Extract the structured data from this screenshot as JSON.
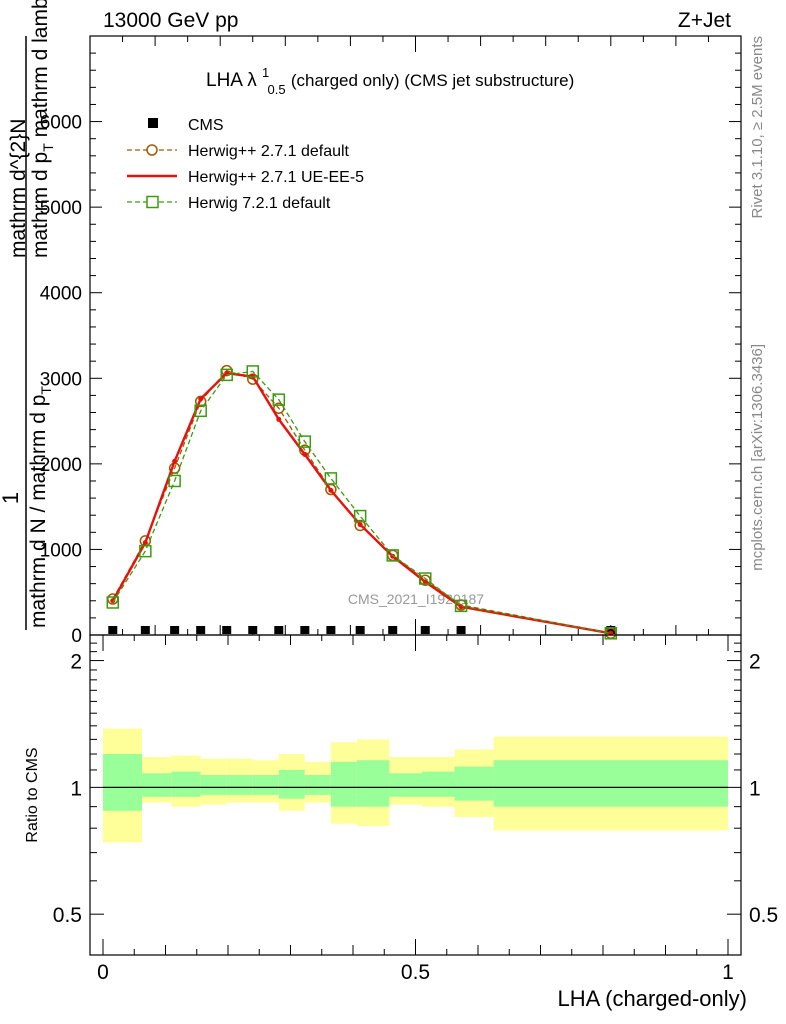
{
  "header": {
    "left": "13000 GeV pp",
    "right": "Z+Jet"
  },
  "side_labels": {
    "rivet": "Rivet 3.1.10, ≥ 2.5M events",
    "mcplots": "mcplots.cern.ch [arXiv:1306.3436]"
  },
  "watermark": "CMS_2021_I1920187",
  "chart_data": [
    {
      "type": "line",
      "title_main": "LHA λ",
      "title_sup": "1",
      "title_sub": "0.5",
      "title_rest": " (charged only) (CMS jet substructure)",
      "ylabel_parts": [
        "1",
        "mathrm d N / mathrm d p",
        "T",
        "mathrm d^{2}N",
        "mathrm d p",
        "T",
        " mathrm d lambda"
      ],
      "xlim": [
        0,
        1
      ],
      "ylim": [
        0,
        7000
      ],
      "yticks": [
        0,
        1000,
        2000,
        3000,
        4000,
        5000,
        6000
      ],
      "ytick_labels": [
        "0",
        "1000",
        "2000",
        "3000",
        "4000",
        "5000",
        "6000"
      ],
      "x": [
        0.035,
        0.085,
        0.13,
        0.17,
        0.21,
        0.25,
        0.29,
        0.33,
        0.37,
        0.415,
        0.465,
        0.515,
        0.57,
        0.8
      ],
      "series": [
        {
          "name": "CMS",
          "color": "#000000",
          "style": "points",
          "marker": "square",
          "values": [
            0,
            0,
            0,
            0,
            0,
            0,
            0,
            0,
            0,
            0,
            0,
            0,
            0,
            0
          ]
        },
        {
          "name": "Herwig++ 2.7.1 default",
          "color": "#a05a00",
          "style": "dashed",
          "marker": "circle",
          "values": [
            420,
            1100,
            1950,
            2730,
            3090,
            2990,
            2650,
            2160,
            1700,
            1280,
            930,
            640,
            350,
            20
          ]
        },
        {
          "name": "Herwig++ 2.7.1 UE-EE-5",
          "color": "#e8120c",
          "style": "solid",
          "marker": "none",
          "values": [
            400,
            1080,
            2030,
            2760,
            3060,
            3020,
            2520,
            2110,
            1690,
            1290,
            920,
            620,
            330,
            20
          ]
        },
        {
          "name": "Herwig 7.2.1 default",
          "color": "#3c9a10",
          "style": "dashed",
          "marker": "open-square",
          "values": [
            380,
            980,
            1800,
            2620,
            3040,
            3080,
            2750,
            2260,
            1830,
            1390,
            930,
            660,
            340,
            20
          ]
        }
      ]
    },
    {
      "type": "area",
      "ylabel": "Ratio to CMS",
      "xlabel": "LHA (charged-only)",
      "xlim": [
        0,
        1
      ],
      "xticks": [
        0,
        0.5,
        1
      ],
      "xtick_labels": [
        "0",
        "0.5",
        "1"
      ],
      "ylim": [
        0.4,
        2.3
      ],
      "yscale": "log",
      "yticks": [
        0.5,
        1,
        2
      ],
      "ytick_labels": [
        "0.5",
        "1",
        "2"
      ],
      "bin_edges": [
        0,
        0.06,
        0.105,
        0.15,
        0.19,
        0.23,
        0.27,
        0.31,
        0.35,
        0.39,
        0.44,
        0.49,
        0.54,
        0.6,
        1.0
      ],
      "band_outer": {
        "color": "#ffff99",
        "low": [
          0.74,
          0.92,
          0.9,
          0.91,
          0.92,
          0.92,
          0.88,
          0.92,
          0.82,
          0.81,
          0.91,
          0.9,
          0.85,
          0.79
        ],
        "high": [
          1.38,
          1.18,
          1.19,
          1.17,
          1.17,
          1.16,
          1.2,
          1.15,
          1.28,
          1.3,
          1.18,
          1.18,
          1.23,
          1.32
        ]
      },
      "band_inner": {
        "color": "#99ff99",
        "low": [
          0.88,
          0.95,
          0.95,
          0.96,
          0.96,
          0.96,
          0.94,
          0.96,
          0.9,
          0.9,
          0.95,
          0.95,
          0.93,
          0.9
        ]
      },
      "band_inner_high": [
        1.2,
        1.08,
        1.09,
        1.07,
        1.07,
        1.07,
        1.1,
        1.07,
        1.15,
        1.16,
        1.08,
        1.09,
        1.12,
        1.16
      ],
      "reference": 1
    }
  ]
}
